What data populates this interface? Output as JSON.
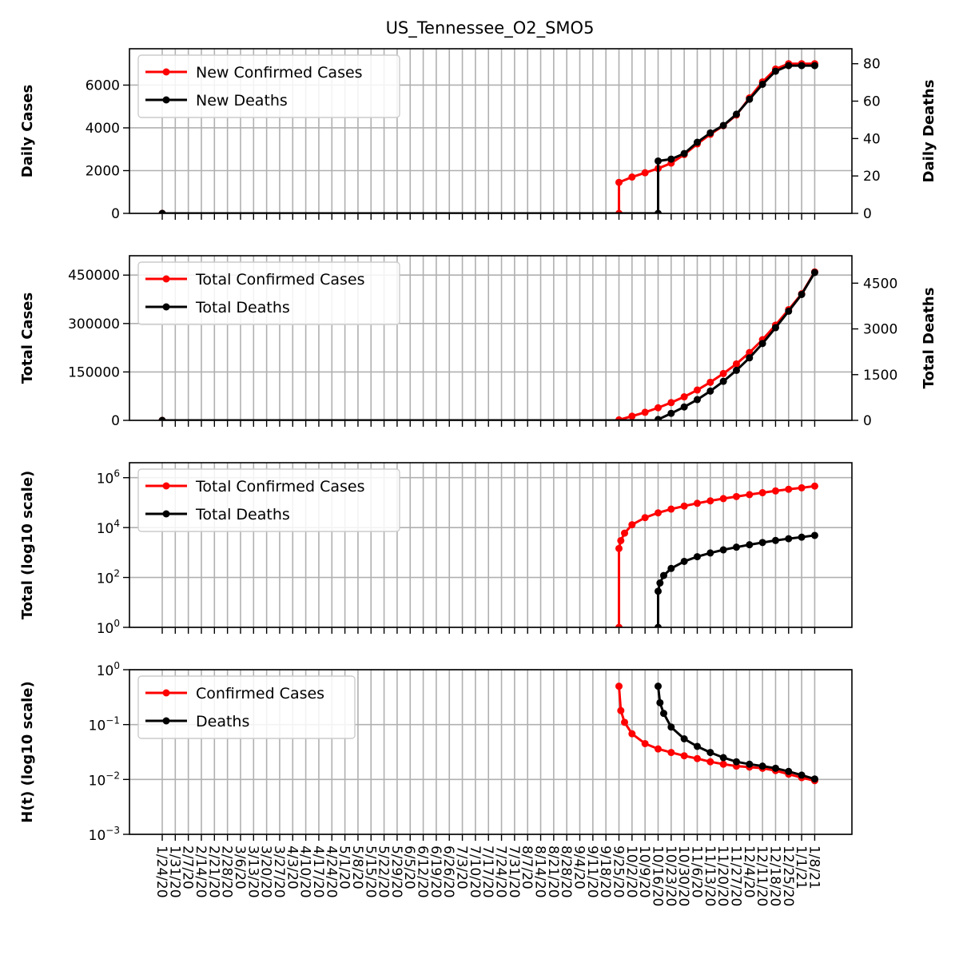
{
  "chart_data": {
    "title": "US_Tennessee_O2_SMO5",
    "type": "line",
    "x_tick_labels": [
      "1/24/20",
      "1/31/20",
      "2/7/20",
      "2/14/20",
      "2/21/20",
      "2/28/20",
      "3/6/20",
      "3/13/20",
      "3/20/20",
      "3/27/20",
      "4/3/20",
      "4/10/20",
      "4/17/20",
      "4/24/20",
      "5/1/20",
      "5/8/20",
      "5/15/20",
      "5/22/20",
      "5/29/20",
      "6/5/20",
      "6/12/20",
      "6/19/20",
      "6/26/20",
      "7/3/20",
      "7/10/20",
      "7/17/20",
      "7/24/20",
      "7/31/20",
      "8/7/20",
      "8/14/20",
      "8/21/20",
      "8/28/20",
      "9/4/20",
      "9/11/20",
      "9/18/20",
      "9/25/20",
      "10/2/20",
      "10/9/20",
      "10/16/20",
      "10/23/20",
      "10/30/20",
      "11/6/20",
      "11/13/20",
      "11/20/20",
      "11/27/20",
      "12/4/20",
      "12/11/20",
      "12/18/20",
      "12/25/20",
      "1/1/21",
      "1/8/21"
    ],
    "grid": true,
    "panels": [
      {
        "id": "daily",
        "ylabel": "Daily Cases",
        "ylabel_right": "Daily Deaths",
        "yscale": "linear",
        "ylim": [
          0,
          7700
        ],
        "ylim_right": [
          0,
          88
        ],
        "yticks": [
          0,
          2000,
          4000,
          6000
        ],
        "yticks_right": [
          0,
          20,
          40,
          60,
          80
        ],
        "legend": "top-left",
        "series": [
          {
            "name": "New Confirmed Cases",
            "color": "#ff0000",
            "axis": "left",
            "points": [
              [
                "1/24/20",
                0
              ],
              [
                "9/25/20",
                0
              ],
              [
                "9/25/20",
                1450
              ],
              [
                "10/2/20",
                1700
              ],
              [
                "10/9/20",
                1900
              ],
              [
                "10/16/20",
                2100
              ],
              [
                "10/23/20",
                2350
              ],
              [
                "10/30/20",
                2750
              ],
              [
                "11/6/20",
                3250
              ],
              [
                "11/13/20",
                3700
              ],
              [
                "11/20/20",
                4100
              ],
              [
                "11/27/20",
                4600
              ],
              [
                "12/4/20",
                5400
              ],
              [
                "12/11/20",
                6150
              ],
              [
                "12/18/20",
                6750
              ],
              [
                "12/25/20",
                7000
              ],
              [
                "1/1/21",
                7000
              ],
              [
                "1/8/21",
                7000
              ]
            ]
          },
          {
            "name": "New Deaths",
            "color": "#000000",
            "axis": "right",
            "points": [
              [
                "1/24/20",
                0
              ],
              [
                "10/16/20",
                0
              ],
              [
                "10/16/20",
                28
              ],
              [
                "10/23/20",
                29
              ],
              [
                "10/30/20",
                32
              ],
              [
                "11/6/20",
                38
              ],
              [
                "11/13/20",
                43
              ],
              [
                "11/20/20",
                47
              ],
              [
                "11/27/20",
                53
              ],
              [
                "12/4/20",
                61
              ],
              [
                "12/11/20",
                69
              ],
              [
                "12/18/20",
                76
              ],
              [
                "12/25/20",
                79
              ],
              [
                "1/1/21",
                79
              ],
              [
                "1/8/21",
                79
              ]
            ]
          }
        ]
      },
      {
        "id": "total",
        "ylabel": "Total Cases",
        "ylabel_right": "Total Deaths",
        "yscale": "linear",
        "ylim": [
          0,
          510000
        ],
        "ylim_right": [
          0,
          5400
        ],
        "yticks": [
          0,
          150000,
          300000,
          450000
        ],
        "yticks_right": [
          0,
          1500,
          3000,
          4500
        ],
        "legend": "top-left",
        "series": [
          {
            "name": "Total Confirmed Cases",
            "color": "#ff0000",
            "axis": "left",
            "points": [
              [
                "1/24/20",
                0
              ],
              [
                "9/25/20",
                0
              ],
              [
                "9/25/20",
                1450
              ],
              [
                "10/2/20",
                13000
              ],
              [
                "10/9/20",
                25000
              ],
              [
                "10/16/20",
                39000
              ],
              [
                "10/23/20",
                55000
              ],
              [
                "10/30/20",
                73000
              ],
              [
                "11/6/20",
                94000
              ],
              [
                "11/13/20",
                118000
              ],
              [
                "11/20/20",
                145000
              ],
              [
                "11/27/20",
                175000
              ],
              [
                "12/4/20",
                210000
              ],
              [
                "12/11/20",
                250000
              ],
              [
                "12/18/20",
                295000
              ],
              [
                "12/25/20",
                343000
              ],
              [
                "1/1/21",
                392000
              ],
              [
                "1/8/21",
                460000
              ]
            ]
          },
          {
            "name": "Total Deaths",
            "color": "#000000",
            "axis": "right",
            "points": [
              [
                "1/24/20",
                0
              ],
              [
                "10/16/20",
                0
              ],
              [
                "10/16/20",
                28
              ],
              [
                "10/23/20",
                230
              ],
              [
                "10/30/20",
                440
              ],
              [
                "11/6/20",
                680
              ],
              [
                "11/13/20",
                960
              ],
              [
                "11/20/20",
                1280
              ],
              [
                "11/27/20",
                1640
              ],
              [
                "12/4/20",
                2050
              ],
              [
                "12/11/20",
                2520
              ],
              [
                "12/18/20",
                3040
              ],
              [
                "12/25/20",
                3580
              ],
              [
                "1/1/21",
                4130
              ],
              [
                "1/8/21",
                4850
              ]
            ]
          }
        ]
      },
      {
        "id": "log_total",
        "ylabel": "Total (log10 scale)",
        "yscale": "log",
        "ylim_log10": [
          0,
          6.6
        ],
        "yticks_log10": [
          0,
          2,
          4,
          6
        ],
        "ytick_base": "10",
        "legend": "top-left",
        "series": [
          {
            "name": "Total Confirmed Cases",
            "color": "#ff0000",
            "points": [
              [
                "9/25/20",
                0
              ],
              [
                "9/25/20",
                1450
              ],
              [
                "9/26/20",
                3000
              ],
              [
                "9/28/20",
                6000
              ],
              [
                "10/2/20",
                13000
              ],
              [
                "10/9/20",
                25000
              ],
              [
                "10/16/20",
                39000
              ],
              [
                "10/23/20",
                55000
              ],
              [
                "10/30/20",
                73000
              ],
              [
                "11/6/20",
                94000
              ],
              [
                "11/13/20",
                118000
              ],
              [
                "11/20/20",
                145000
              ],
              [
                "11/27/20",
                175000
              ],
              [
                "12/4/20",
                210000
              ],
              [
                "12/11/20",
                250000
              ],
              [
                "12/18/20",
                295000
              ],
              [
                "12/25/20",
                343000
              ],
              [
                "1/1/21",
                392000
              ],
              [
                "1/8/21",
                460000
              ]
            ]
          },
          {
            "name": "Total Deaths",
            "color": "#000000",
            "points": [
              [
                "10/16/20",
                0
              ],
              [
                "10/16/20",
                28
              ],
              [
                "10/17/20",
                60
              ],
              [
                "10/19/20",
                120
              ],
              [
                "10/23/20",
                230
              ],
              [
                "10/30/20",
                440
              ],
              [
                "11/6/20",
                680
              ],
              [
                "11/13/20",
                960
              ],
              [
                "11/20/20",
                1280
              ],
              [
                "11/27/20",
                1640
              ],
              [
                "12/4/20",
                2050
              ],
              [
                "12/11/20",
                2520
              ],
              [
                "12/18/20",
                3040
              ],
              [
                "12/25/20",
                3580
              ],
              [
                "1/1/21",
                4130
              ],
              [
                "1/8/21",
                4850
              ]
            ]
          }
        ]
      },
      {
        "id": "ht",
        "ylabel": "H(t) (log10 scale)",
        "yscale": "log",
        "ylim_log10": [
          -3,
          0
        ],
        "yticks_log10": [
          -3,
          -2,
          -1,
          0
        ],
        "ytick_base": "10",
        "legend": "top-left",
        "series": [
          {
            "name": "Confirmed Cases",
            "color": "#ff0000",
            "points": [
              [
                "9/25/20",
                0.5
              ],
              [
                "9/26/20",
                0.18
              ],
              [
                "9/28/20",
                0.11
              ],
              [
                "10/2/20",
                0.068
              ],
              [
                "10/9/20",
                0.045
              ],
              [
                "10/16/20",
                0.036
              ],
              [
                "10/23/20",
                0.031
              ],
              [
                "10/30/20",
                0.027
              ],
              [
                "11/6/20",
                0.024
              ],
              [
                "11/13/20",
                0.021
              ],
              [
                "11/20/20",
                0.019
              ],
              [
                "11/27/20",
                0.0175
              ],
              [
                "12/4/20",
                0.0168
              ],
              [
                "12/11/20",
                0.016
              ],
              [
                "12/18/20",
                0.0145
              ],
              [
                "12/25/20",
                0.0125
              ],
              [
                "1/1/21",
                0.0108
              ],
              [
                "1/8/21",
                0.0095
              ]
            ]
          },
          {
            "name": "Deaths",
            "color": "#000000",
            "points": [
              [
                "10/16/20",
                0.5
              ],
              [
                "10/17/20",
                0.25
              ],
              [
                "10/19/20",
                0.16
              ],
              [
                "10/23/20",
                0.09
              ],
              [
                "10/30/20",
                0.055
              ],
              [
                "11/6/20",
                0.04
              ],
              [
                "11/13/20",
                0.031
              ],
              [
                "11/20/20",
                0.025
              ],
              [
                "11/27/20",
                0.021
              ],
              [
                "12/4/20",
                0.019
              ],
              [
                "12/11/20",
                0.0175
              ],
              [
                "12/18/20",
                0.016
              ],
              [
                "12/25/20",
                0.014
              ],
              [
                "1/1/21",
                0.012
              ],
              [
                "1/8/21",
                0.0102
              ]
            ]
          }
        ]
      }
    ]
  }
}
